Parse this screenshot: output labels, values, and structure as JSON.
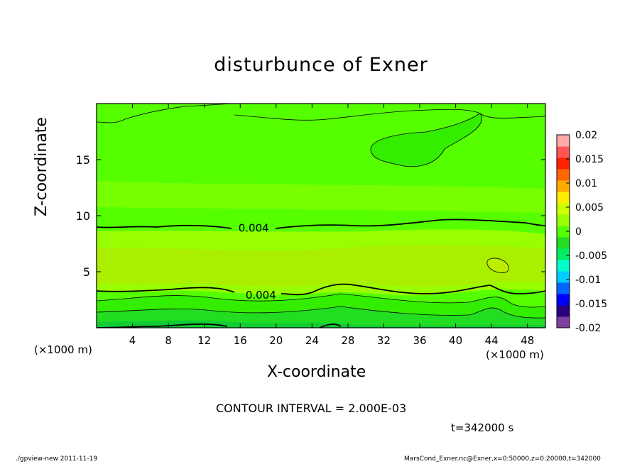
{
  "chart_data": {
    "type": "heatmap",
    "title": "disturbunce of Exner",
    "xlabel": "X-coordinate",
    "ylabel": "Z-coordinate",
    "x_unit": "(×1000 m)",
    "x_unit_right": "(×1000 m)",
    "xlim": [
      0,
      50
    ],
    "ylim": [
      0,
      20
    ],
    "x_ticks": [
      4,
      8,
      12,
      16,
      20,
      24,
      28,
      32,
      36,
      40,
      44,
      48
    ],
    "y_ticks": [
      5,
      10,
      15
    ],
    "colorbar": {
      "ticks": [
        "0.02",
        "0.015",
        "0.01",
        "0.005",
        "0",
        "-0.005",
        "-0.01",
        "-0.015",
        "-0.02"
      ],
      "range": [
        -0.02,
        0.02
      ],
      "colors": [
        "#7f3f9f",
        "#2a007f",
        "#0000ff",
        "#0066ff",
        "#00ccff",
        "#00ffcc",
        "#00ee66",
        "#22dd22",
        "#55ff00",
        "#99ff00",
        "#ccff00",
        "#ffee00",
        "#ffaa00",
        "#ff6600",
        "#ff2200",
        "#ff5555",
        "#ffaaaa"
      ]
    },
    "contour_labels": [
      {
        "text": "0.004",
        "x": 17.5,
        "z": 8.9
      },
      {
        "text": "0.004",
        "x": 18.3,
        "z": 2.9
      }
    ],
    "contour_interval": "CONTOUR INTERVAL = 2.000E-03",
    "grid": false
  },
  "time_label": "t=342000 s",
  "footer_left": "./gpview-new   2011-11-19",
  "footer_right": "MarsCond_Exner.nc@Exner,x=0:50000,z=0:20000,t=342000"
}
